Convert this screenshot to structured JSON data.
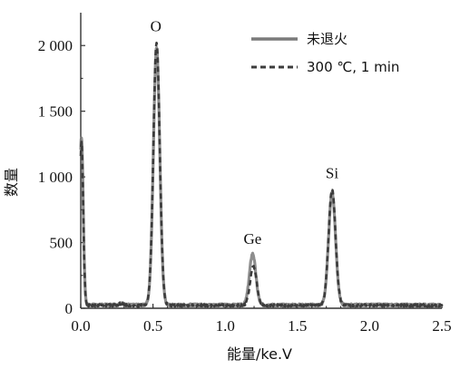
{
  "chart_data": {
    "type": "line",
    "xlabel": "能量/ke.V",
    "ylabel": "数量",
    "xlim": [
      0.0,
      2.5
    ],
    "ylim": [
      0,
      2250
    ],
    "xticks": [
      {
        "value": 0.0,
        "label": "0.0"
      },
      {
        "value": 0.5,
        "label": "0.5"
      },
      {
        "value": 1.0,
        "label": "1.0"
      },
      {
        "value": 1.5,
        "label": "1.5"
      },
      {
        "value": 2.0,
        "label": "2.0"
      },
      {
        "value": 2.5,
        "label": "2.5"
      }
    ],
    "yticks": [
      {
        "value": 0,
        "label": "0"
      },
      {
        "value": 500,
        "label": "500"
      },
      {
        "value": 1000,
        "label": "1 000"
      },
      {
        "value": 1500,
        "label": "1 500"
      },
      {
        "value": 2000,
        "label": "2 000"
      }
    ],
    "grid": false,
    "legend_position": "top-right",
    "series": [
      {
        "name": "未退火",
        "color": "#7a7a7a",
        "style": "solid",
        "baseline": 25,
        "spikes": [
          {
            "x": 0.005,
            "height": 1280,
            "sigma": 0.012
          }
        ],
        "peaks": [
          {
            "x": 0.525,
            "height": 1960,
            "sigma": 0.022
          },
          {
            "x": 1.19,
            "height": 390,
            "sigma": 0.022
          },
          {
            "x": 1.74,
            "height": 855,
            "sigma": 0.024
          }
        ]
      },
      {
        "name": "300 ℃, 1 min",
        "color": "#3c3c3c",
        "style": "dashed",
        "baseline": 22,
        "spikes": [
          {
            "x": 0.005,
            "height": 1250,
            "sigma": 0.012
          }
        ],
        "peaks": [
          {
            "x": 0.525,
            "height": 2000,
            "sigma": 0.022
          },
          {
            "x": 1.195,
            "height": 300,
            "sigma": 0.022
          },
          {
            "x": 1.74,
            "height": 880,
            "sigma": 0.024
          }
        ]
      }
    ],
    "annotations": [
      {
        "text": "O",
        "x": 0.52,
        "y": 2110
      },
      {
        "text": "Ge",
        "x": 1.19,
        "y": 490
      },
      {
        "text": "Si",
        "x": 1.74,
        "y": 990
      }
    ]
  }
}
